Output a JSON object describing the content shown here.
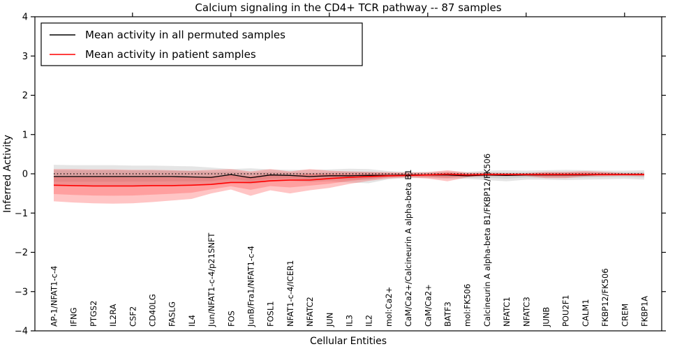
{
  "title": "Calcium signaling in the CD4+ TCR pathway -- 87 samples",
  "axes": {
    "xlabel": "Cellular Entities",
    "ylabel": "Inferred Activity",
    "yticks": [
      4,
      3,
      2,
      1,
      0,
      -1,
      -2,
      -3,
      -4
    ]
  },
  "colors": {
    "permuted_line": "#000000",
    "patient_line": "#ff0000",
    "permuted_band": "#606060",
    "patient_band": "#ff2a2a",
    "frame": "#000000",
    "background": "#ffffff"
  },
  "chart_data": {
    "type": "line",
    "title": "Calcium signaling in the CD4+ TCR pathway -- 87 samples",
    "xlabel": "Cellular Entities",
    "ylabel": "Inferred Activity",
    "ylim": [
      -4,
      4
    ],
    "grid": false,
    "legend_position": "upper left",
    "zero_line": true,
    "categories": [
      "AP-1/NFAT1-c-4",
      "IFNG",
      "PTGS2",
      "IL2RA",
      "CSF2",
      "CD40LG",
      "FASLG",
      "IL4",
      "Jun/NFAT1-c-4/p21SNFT",
      "FOS",
      "JunB/Fra1/NFAT1-c-4",
      "FOSL1",
      "NFAT1-c-4/ICER1",
      "NFATC2",
      "JUN",
      "IL3",
      "IL2",
      "mol:Ca2+",
      "CaM/Ca2+/Calcineurin A alpha-beta B1",
      "CaM/Ca2+",
      "BATF3",
      "mol:FK506",
      "Calcineurin A alpha-beta B1/FKBP12/FK506",
      "NFATC1",
      "NFATC3",
      "JUNB",
      "POU2F1",
      "CALM1",
      "FKBP12/FK506",
      "CREM",
      "FKBP1A"
    ],
    "series": [
      {
        "name": "Mean activity in all permuted samples",
        "color": "#000000",
        "values": [
          -0.07,
          -0.07,
          -0.07,
          -0.07,
          -0.07,
          -0.07,
          -0.07,
          -0.08,
          -0.09,
          -0.02,
          -0.1,
          -0.03,
          -0.04,
          -0.07,
          -0.05,
          -0.05,
          -0.04,
          -0.04,
          -0.03,
          -0.03,
          -0.03,
          -0.05,
          -0.03,
          -0.04,
          -0.03,
          -0.03,
          -0.03,
          -0.03,
          -0.02,
          -0.02,
          -0.02
        ],
        "band_upper": [
          0.23,
          0.22,
          0.22,
          0.22,
          0.21,
          0.21,
          0.2,
          0.19,
          0.16,
          0.12,
          0.14,
          0.11,
          0.1,
          0.1,
          0.11,
          0.13,
          0.12,
          0.07,
          0.05,
          0.05,
          0.06,
          0.05,
          0.08,
          0.09,
          0.08,
          0.09,
          0.1,
          0.09,
          0.08,
          0.08,
          0.09
        ],
        "band_lower": [
          -0.31,
          -0.31,
          -0.31,
          -0.31,
          -0.3,
          -0.3,
          -0.29,
          -0.28,
          -0.27,
          -0.21,
          -0.26,
          -0.2,
          -0.18,
          -0.21,
          -0.19,
          -0.22,
          -0.24,
          -0.14,
          -0.11,
          -0.11,
          -0.13,
          -0.13,
          -0.16,
          -0.19,
          -0.15,
          -0.15,
          -0.16,
          -0.15,
          -0.14,
          -0.13,
          -0.15
        ]
      },
      {
        "name": "Mean activity in patient samples",
        "color": "#ff0000",
        "values": [
          -0.29,
          -0.3,
          -0.31,
          -0.31,
          -0.31,
          -0.3,
          -0.3,
          -0.29,
          -0.27,
          -0.22,
          -0.22,
          -0.18,
          -0.16,
          -0.16,
          -0.12,
          -0.09,
          -0.07,
          -0.05,
          -0.04,
          -0.03,
          -0.01,
          -0.03,
          -0.02,
          -0.02,
          -0.02,
          -0.02,
          -0.02,
          -0.02,
          -0.02,
          -0.02,
          -0.02
        ],
        "band_upper": [
          0.12,
          0.12,
          0.11,
          0.11,
          0.1,
          0.1,
          0.09,
          0.08,
          0.1,
          0.12,
          0.06,
          0.12,
          0.06,
          0.12,
          0.08,
          0.06,
          0.05,
          0.04,
          0.03,
          0.04,
          0.09,
          0.03,
          0.03,
          0.02,
          0.02,
          0.05,
          0.05,
          0.07,
          0.05,
          0.02,
          0.02
        ],
        "band_lower": [
          -0.7,
          -0.73,
          -0.75,
          -0.76,
          -0.75,
          -0.72,
          -0.68,
          -0.64,
          -0.5,
          -0.4,
          -0.56,
          -0.42,
          -0.5,
          -0.42,
          -0.36,
          -0.26,
          -0.18,
          -0.12,
          -0.09,
          -0.12,
          -0.19,
          -0.09,
          -0.06,
          -0.06,
          -0.06,
          -0.11,
          -0.11,
          -0.07,
          -0.06,
          -0.05,
          -0.06
        ]
      }
    ]
  }
}
